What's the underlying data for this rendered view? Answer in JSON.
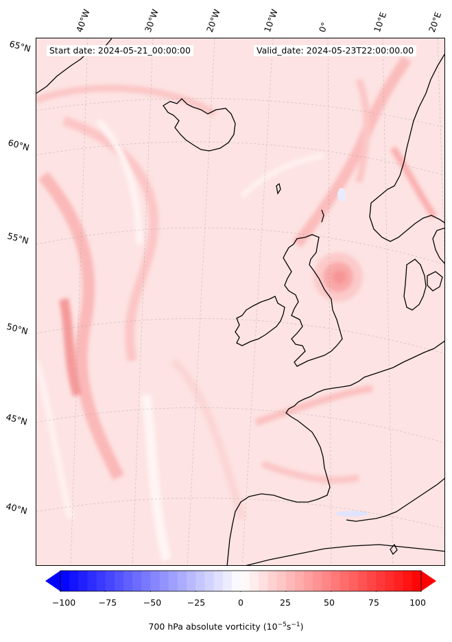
{
  "header": {
    "start_date": "Start date: 2024-05-21_00:00:00",
    "valid_date": "Valid_date: 2024-05-23T22:00:00.00"
  },
  "longitude_labels": [
    "40°W",
    "30°W",
    "20°W",
    "10°W",
    "0°",
    "10°E",
    "20°E"
  ],
  "latitude_labels": [
    "65°N",
    "60°N",
    "55°N",
    "50°N",
    "45°N",
    "40°N"
  ],
  "colorbar": {
    "ticks": [
      "−100",
      "−75",
      "−50",
      "−25",
      "0",
      "25",
      "50",
      "75",
      "100"
    ],
    "label_main": "700 hPa absolute vorticity (10",
    "label_exp1": "−5",
    "label_mid": "s",
    "label_exp2": "−1",
    "label_end": ")",
    "min": -100,
    "max": 100,
    "cmap_low": "#0000ff",
    "cmap_mid": "#ffffff",
    "cmap_high": "#ff0000"
  },
  "colors": {
    "background_field": "#fde5e5",
    "coastline": "#000000",
    "gridline": "#b0b0b0"
  }
}
